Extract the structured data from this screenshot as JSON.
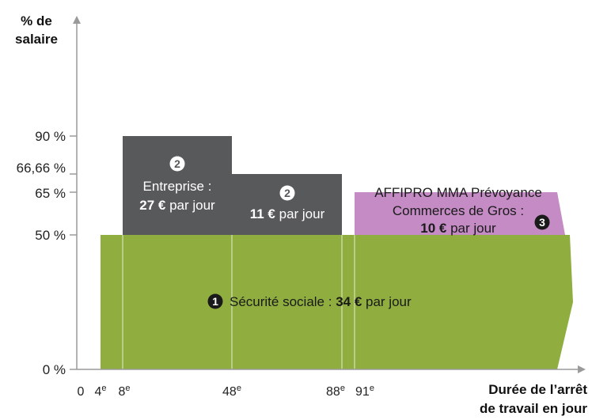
{
  "chart_data": {
    "type": "area",
    "ylabel_lines": [
      "% de",
      "salaire"
    ],
    "xlabel_lines": [
      "Durée de l’arrêt",
      "de travail en jour"
    ],
    "y_ticks": [
      {
        "value": 0,
        "label": "0 %"
      },
      {
        "value": 50,
        "label": "50 %"
      },
      {
        "value": 65,
        "label": "65 %"
      },
      {
        "value": 66.66,
        "label": "66,66 %"
      },
      {
        "value": 90,
        "label": "90 %"
      }
    ],
    "x_ticks": [
      {
        "value": 0,
        "label": "0"
      },
      {
        "value": 4,
        "label": "4",
        "sup": "e"
      },
      {
        "value": 8,
        "label": "8",
        "sup": "e"
      },
      {
        "value": 48,
        "label": "48",
        "sup": "e"
      },
      {
        "value": 88,
        "label": "88",
        "sup": "e"
      },
      {
        "value": 91,
        "label": "91",
        "sup": "e"
      }
    ],
    "ylim": [
      0,
      100
    ],
    "segments": [
      {
        "id": "securite-sociale",
        "marker": "1",
        "x_start": 4,
        "x_end": null,
        "y_bottom": 0,
        "y_top": 50,
        "color": "#8fae3f",
        "text_plain": "Sécurité sociale : ",
        "text_bold": "34 €",
        "text_after": " par jour"
      },
      {
        "id": "entreprise-90",
        "marker": "2",
        "x_start": 8,
        "x_end": 48,
        "y_bottom": 50,
        "y_top": 90,
        "color": "#58595b",
        "line1": "Entreprise :",
        "text_bold": "27 €",
        "text_after": " par jour"
      },
      {
        "id": "entreprise-66",
        "marker": "2",
        "x_start": 48,
        "x_end": 88,
        "y_bottom": 50,
        "y_top": 66.66,
        "color": "#58595b",
        "text_bold": "11 €",
        "text_after": " par jour"
      },
      {
        "id": "affipro",
        "marker": "3",
        "x_start": 91,
        "x_end": null,
        "y_bottom": 50,
        "y_top": 65,
        "color": "#c48bc4",
        "line1": "AFFIPRO MMA Prévoyance",
        "line2": "Commerces de Gros :",
        "text_bold": "10 €",
        "text_after": " par jour"
      }
    ],
    "colors": {
      "green": "#8fae3f",
      "gray": "#58595b",
      "purple": "#c48bc4",
      "guide": "#c7d79c",
      "axis": "#9a9a9a"
    }
  }
}
